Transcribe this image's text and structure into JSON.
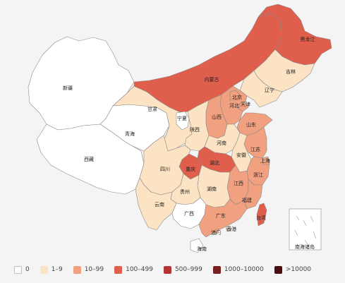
{
  "colors": {
    "c0": "#ffffff",
    "c1": "#fbe3c3",
    "c2": "#f1a17f",
    "c3": "#e05e4c",
    "c4": "#b33232",
    "c5": "#7a1f1f",
    "c6": "#4a0e0e"
  },
  "legend": [
    {
      "label": "0",
      "color": "#ffffff"
    },
    {
      "label": "1–9",
      "color": "#fbe3c3"
    },
    {
      "label": "10–99",
      "color": "#f1a17f"
    },
    {
      "label": "100–499",
      "color": "#e05e4c"
    },
    {
      "label": "500–999",
      "color": "#b33232"
    },
    {
      "label": "1000–10000",
      "color": "#7a1f1f"
    },
    {
      "label": ">10000",
      "color": "#4a0e0e"
    }
  ],
  "provinces": [
    {
      "label": "新疆",
      "bucket": 0
    },
    {
      "label": "西藏",
      "bucket": 0
    },
    {
      "label": "青海",
      "bucket": 0
    },
    {
      "label": "甘肃",
      "bucket": 1
    },
    {
      "label": "内蒙古",
      "bucket": 3
    },
    {
      "label": "黑龙江",
      "bucket": 3
    },
    {
      "label": "吉林",
      "bucket": 1
    },
    {
      "label": "辽宁",
      "bucket": 1
    },
    {
      "label": "北京",
      "bucket": 2
    },
    {
      "label": "天津",
      "bucket": 2
    },
    {
      "label": "河北",
      "bucket": 2
    },
    {
      "label": "山西",
      "bucket": 2
    },
    {
      "label": "宁夏",
      "bucket": 0
    },
    {
      "label": "陕西",
      "bucket": 1
    },
    {
      "label": "山东",
      "bucket": 2
    },
    {
      "label": "河南",
      "bucket": 1
    },
    {
      "label": "江苏",
      "bucket": 2
    },
    {
      "label": "安徽",
      "bucket": 1
    },
    {
      "label": "上海",
      "bucket": 2
    },
    {
      "label": "湖北",
      "bucket": 3
    },
    {
      "label": "重庆",
      "bucket": 3
    },
    {
      "label": "四川",
      "bucket": 1
    },
    {
      "label": "浙江",
      "bucket": 2
    },
    {
      "label": "江西",
      "bucket": 2
    },
    {
      "label": "湖南",
      "bucket": 1
    },
    {
      "label": "贵州",
      "bucket": 1
    },
    {
      "label": "云南",
      "bucket": 1
    },
    {
      "label": "福建",
      "bucket": 2
    },
    {
      "label": "广西",
      "bucket": 0
    },
    {
      "label": "广东",
      "bucket": 2
    },
    {
      "label": "台湾",
      "bucket": 3
    },
    {
      "label": "香港",
      "bucket": 1
    },
    {
      "label": "澳门",
      "bucket": 2
    },
    {
      "label": "海南",
      "bucket": 0
    }
  ],
  "inset_label": "南海诸岛"
}
